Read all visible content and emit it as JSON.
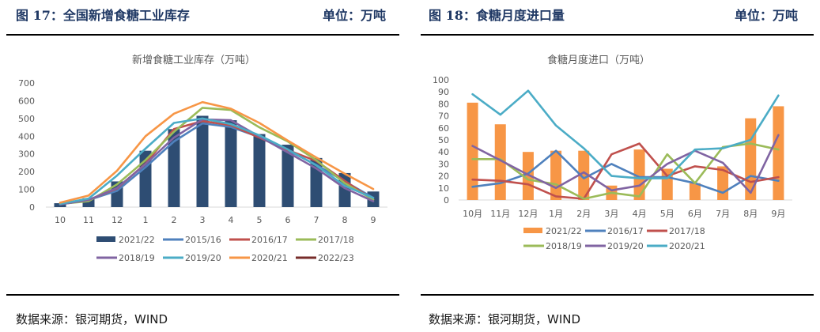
{
  "figures": [
    {
      "title": "图 17：全国新增食糖工业库存",
      "unit": "单位：万吨",
      "source": "数据来源：银河期货，WIND"
    },
    {
      "title": "图 18：食糖月度进口量",
      "unit": "单位：万吨",
      "source": "数据来源：银河期货，WIND"
    }
  ],
  "chart_data": [
    {
      "type": "bar",
      "title": "新增食糖工业库存（万吨）",
      "xlabel": "",
      "ylabel": "",
      "ylim": [
        0,
        700
      ],
      "yticks": [
        0,
        100,
        200,
        300,
        400,
        500,
        600,
        700
      ],
      "grid": false,
      "legend": "bottom",
      "categories": [
        "10",
        "11",
        "12",
        "1",
        "2",
        "3",
        "4",
        "5",
        "6",
        "7",
        "8",
        "9"
      ],
      "bar_series": {
        "name": "2021/22",
        "color": "#2e4d73",
        "values": [
          22,
          50,
          145,
          318,
          440,
          515,
          490,
          412,
          352,
          277,
          192,
          88
        ]
      },
      "series": [
        {
          "name": "2015/16",
          "color": "#4f81bd",
          "values": [
            15,
            40,
            92,
            225,
            370,
            472,
            452,
            395,
            320,
            238,
            145,
            52
          ]
        },
        {
          "name": "2016/17",
          "color": "#c0504d",
          "values": [
            18,
            40,
            105,
            245,
            440,
            485,
            462,
            392,
            322,
            260,
            148,
            42
          ]
        },
        {
          "name": "2017/18",
          "color": "#9bbb59",
          "values": [
            18,
            33,
            128,
            265,
            425,
            560,
            548,
            450,
            370,
            265,
            135,
            42
          ]
        },
        {
          "name": "2018/19",
          "color": "#8064a2",
          "values": [
            15,
            40,
            108,
            242,
            392,
            495,
            490,
            398,
            308,
            218,
            107,
            33
          ]
        },
        {
          "name": "2019/20",
          "color": "#4bacc6",
          "values": [
            18,
            48,
            178,
            330,
            475,
            500,
            468,
            405,
            325,
            235,
            120,
            52
          ]
        },
        {
          "name": "2020/21",
          "color": "#f79646",
          "values": [
            25,
            65,
            205,
            400,
            527,
            592,
            555,
            475,
            375,
            280,
            188,
            102
          ]
        },
        {
          "name": "2022/23",
          "color": "#772c2a",
          "values": []
        }
      ]
    },
    {
      "type": "bar",
      "title": "食糖月度进口（万吨）",
      "xlabel": "",
      "ylabel": "",
      "ylim": [
        0,
        100
      ],
      "yticks": [
        0,
        10,
        20,
        30,
        40,
        50,
        60,
        70,
        80,
        90,
        100
      ],
      "grid": false,
      "legend": "bottom",
      "categories": [
        "10月",
        "11月",
        "12月",
        "1月",
        "2月",
        "3月",
        "4月",
        "5月",
        "6月",
        "7月",
        "8月",
        "9月"
      ],
      "bar_series": {
        "name": "2021/22",
        "color": "#f79646",
        "values": [
          81,
          63,
          40,
          41,
          41,
          12,
          42,
          26,
          14,
          28,
          68,
          78
        ]
      },
      "series": [
        {
          "name": "2016/17",
          "color": "#4f81bd",
          "values": [
            11,
            14,
            22,
            41,
            18,
            30,
            19,
            19,
            14,
            6,
            20,
            16
          ]
        },
        {
          "name": "2017/18",
          "color": "#c0504d",
          "values": [
            17,
            16,
            13,
            3,
            1,
            38,
            47,
            20,
            28,
            25,
            15,
            19
          ]
        },
        {
          "name": "2018/19",
          "color": "#9bbb59",
          "values": [
            34,
            34,
            17,
            13,
            1,
            6,
            3,
            38,
            14,
            44,
            47,
            42
          ]
        },
        {
          "name": "2019/20",
          "color": "#8064a2",
          "values": [
            45,
            33,
            21,
            10,
            23,
            8,
            12,
            30,
            41,
            31,
            6,
            54
          ]
        },
        {
          "name": "2020/21",
          "color": "#4bacc6",
          "values": [
            88,
            71,
            91,
            62,
            43,
            20,
            18,
            18,
            42,
            43,
            50,
            87
          ]
        }
      ]
    }
  ]
}
